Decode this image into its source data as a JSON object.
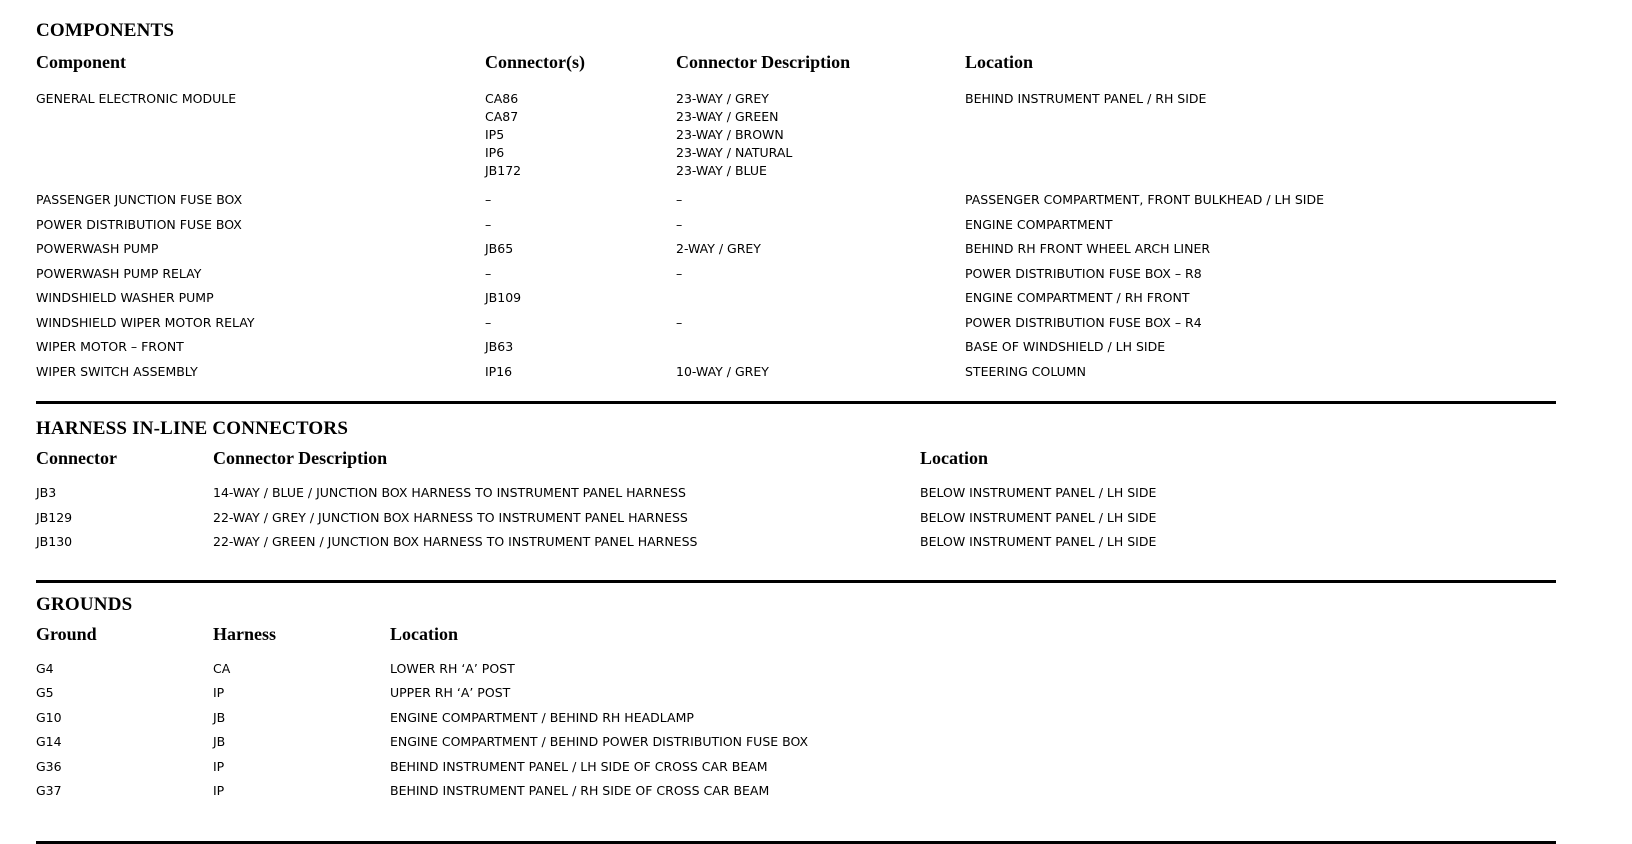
{
  "components": {
    "title": "COMPONENTS",
    "headers": [
      "Component",
      "Connector(s)",
      "Connector Description",
      "Location"
    ],
    "rows": [
      {
        "component": "GENERAL ELECTRONIC MODULE",
        "connectors": [
          {
            "code": "CA86",
            "description": "23-WAY / GREY"
          },
          {
            "code": "CA87",
            "description": "23-WAY / GREEN"
          },
          {
            "code": "IP5",
            "description": "23-WAY / BROWN"
          },
          {
            "code": "IP6",
            "description": "23-WAY / NATURAL"
          },
          {
            "code": "JB172",
            "description": "23-WAY / BLUE"
          }
        ],
        "location": "BEHIND INSTRUMENT PANEL / RH SIDE"
      },
      {
        "component": "PASSENGER JUNCTION FUSE BOX",
        "connectors": [
          {
            "code": "–",
            "description": "–"
          }
        ],
        "location": "PASSENGER COMPARTMENT, FRONT BULKHEAD / LH SIDE"
      },
      {
        "component": "POWER DISTRIBUTION FUSE BOX",
        "connectors": [
          {
            "code": "–",
            "description": "–"
          }
        ],
        "location": "ENGINE COMPARTMENT"
      },
      {
        "component": "POWERWASH PUMP",
        "connectors": [
          {
            "code": "JB65",
            "description": "2-WAY / GREY"
          }
        ],
        "location": "BEHIND RH FRONT WHEEL ARCH LINER"
      },
      {
        "component": "POWERWASH PUMP RELAY",
        "connectors": [
          {
            "code": "–",
            "description": "–"
          }
        ],
        "location": "POWER DISTRIBUTION FUSE BOX – R8"
      },
      {
        "component": "WINDSHIELD WASHER PUMP",
        "connectors": [
          {
            "code": "JB109",
            "description": ""
          }
        ],
        "location": "ENGINE COMPARTMENT / RH FRONT"
      },
      {
        "component": "WINDSHIELD WIPER MOTOR RELAY",
        "connectors": [
          {
            "code": "–",
            "description": "–"
          }
        ],
        "location": "POWER DISTRIBUTION FUSE BOX – R4"
      },
      {
        "component": "WIPER MOTOR – FRONT",
        "connectors": [
          {
            "code": "JB63",
            "description": ""
          }
        ],
        "location": "BASE OF WINDSHIELD / LH SIDE"
      },
      {
        "component": "WIPER SWITCH ASSEMBLY",
        "connectors": [
          {
            "code": "IP16",
            "description": "10-WAY / GREY"
          }
        ],
        "location": "STEERING COLUMN"
      }
    ]
  },
  "harness_inline_connectors": {
    "title": "HARNESS IN-LINE CONNECTORS",
    "headers": [
      "Connector",
      "Connector Description",
      "Location"
    ],
    "rows": [
      {
        "connector": "JB3",
        "description": "14-WAY / BLUE / JUNCTION BOX HARNESS TO INSTRUMENT PANEL HARNESS",
        "location": "BELOW INSTRUMENT PANEL / LH SIDE"
      },
      {
        "connector": "JB129",
        "description": "22-WAY / GREY / JUNCTION BOX HARNESS TO INSTRUMENT PANEL HARNESS",
        "location": "BELOW INSTRUMENT PANEL / LH SIDE"
      },
      {
        "connector": "JB130",
        "description": "22-WAY / GREEN / JUNCTION BOX HARNESS TO INSTRUMENT PANEL HARNESS",
        "location": "BELOW INSTRUMENT PANEL / LH SIDE"
      }
    ]
  },
  "grounds": {
    "title": "GROUNDS",
    "headers": [
      "Ground",
      "Harness",
      "Location"
    ],
    "rows": [
      {
        "ground": "G4",
        "harness": "CA",
        "location": "LOWER RH ‘A’ POST"
      },
      {
        "ground": "G5",
        "harness": "IP",
        "location": "UPPER RH ‘A’ POST"
      },
      {
        "ground": "G10",
        "harness": "JB",
        "location": "ENGINE COMPARTMENT / BEHIND RH HEADLAMP"
      },
      {
        "ground": "G14",
        "harness": "JB",
        "location": "ENGINE COMPARTMENT / BEHIND POWER DISTRIBUTION FUSE BOX"
      },
      {
        "ground": "G36",
        "harness": "IP",
        "location": "BEHIND INSTRUMENT PANEL / LH SIDE OF CROSS CAR BEAM"
      },
      {
        "ground": "G37",
        "harness": "IP",
        "location": "BEHIND INSTRUMENT PANEL / RH SIDE OF CROSS CAR BEAM"
      }
    ]
  }
}
